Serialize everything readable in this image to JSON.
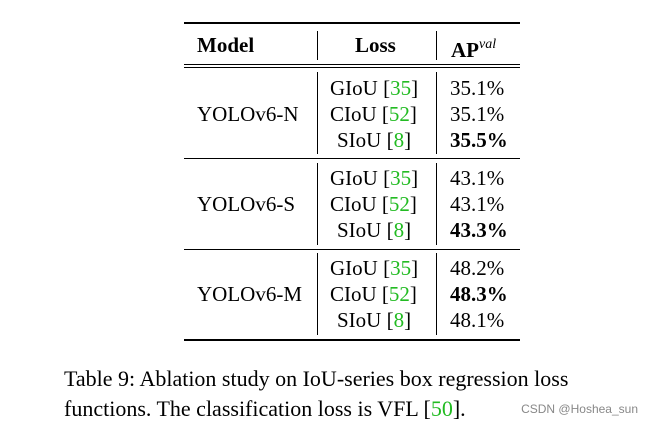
{
  "table": {
    "header": {
      "model": "Model",
      "loss": "Loss",
      "ap": "AP",
      "ap_sup": "val"
    },
    "groups": [
      {
        "model": "YOLOv6-N",
        "rows": [
          {
            "loss": "GIoU [",
            "ref": "35",
            "close": "]",
            "ap": "35.1%",
            "bold": false
          },
          {
            "loss": "CIoU [",
            "ref": "52",
            "close": "]",
            "ap": "35.1%",
            "bold": false
          },
          {
            "loss": "SIoU [",
            "ref": "8",
            "close": "]",
            "ap": "35.5%",
            "bold": true
          }
        ]
      },
      {
        "model": "YOLOv6-S",
        "rows": [
          {
            "loss": "GIoU [",
            "ref": "35",
            "close": "]",
            "ap": "43.1%",
            "bold": false
          },
          {
            "loss": "CIoU [",
            "ref": "52",
            "close": "]",
            "ap": "43.1%",
            "bold": false
          },
          {
            "loss": "SIoU [",
            "ref": "8",
            "close": "]",
            "ap": "43.3%",
            "bold": true
          }
        ]
      },
      {
        "model": "YOLOv6-M",
        "rows": [
          {
            "loss": "GIoU [",
            "ref": "35",
            "close": "]",
            "ap": "48.2%",
            "bold": false
          },
          {
            "loss": "CIoU [",
            "ref": "52",
            "close": "]",
            "ap": "48.3%",
            "bold": true
          },
          {
            "loss": "SIoU [",
            "ref": "8",
            "close": "]",
            "ap": "48.1%",
            "bold": false
          }
        ]
      }
    ]
  },
  "caption": {
    "line1": "Table 9:  Ablation study on IoU-series box regression loss",
    "line2_pre": "functions. The classification loss is VFL [",
    "line2_ref": "50",
    "line2_post": "]."
  },
  "watermark": "CSDN @Hoshea_sun",
  "colors": {
    "citation": "#22bb22"
  }
}
